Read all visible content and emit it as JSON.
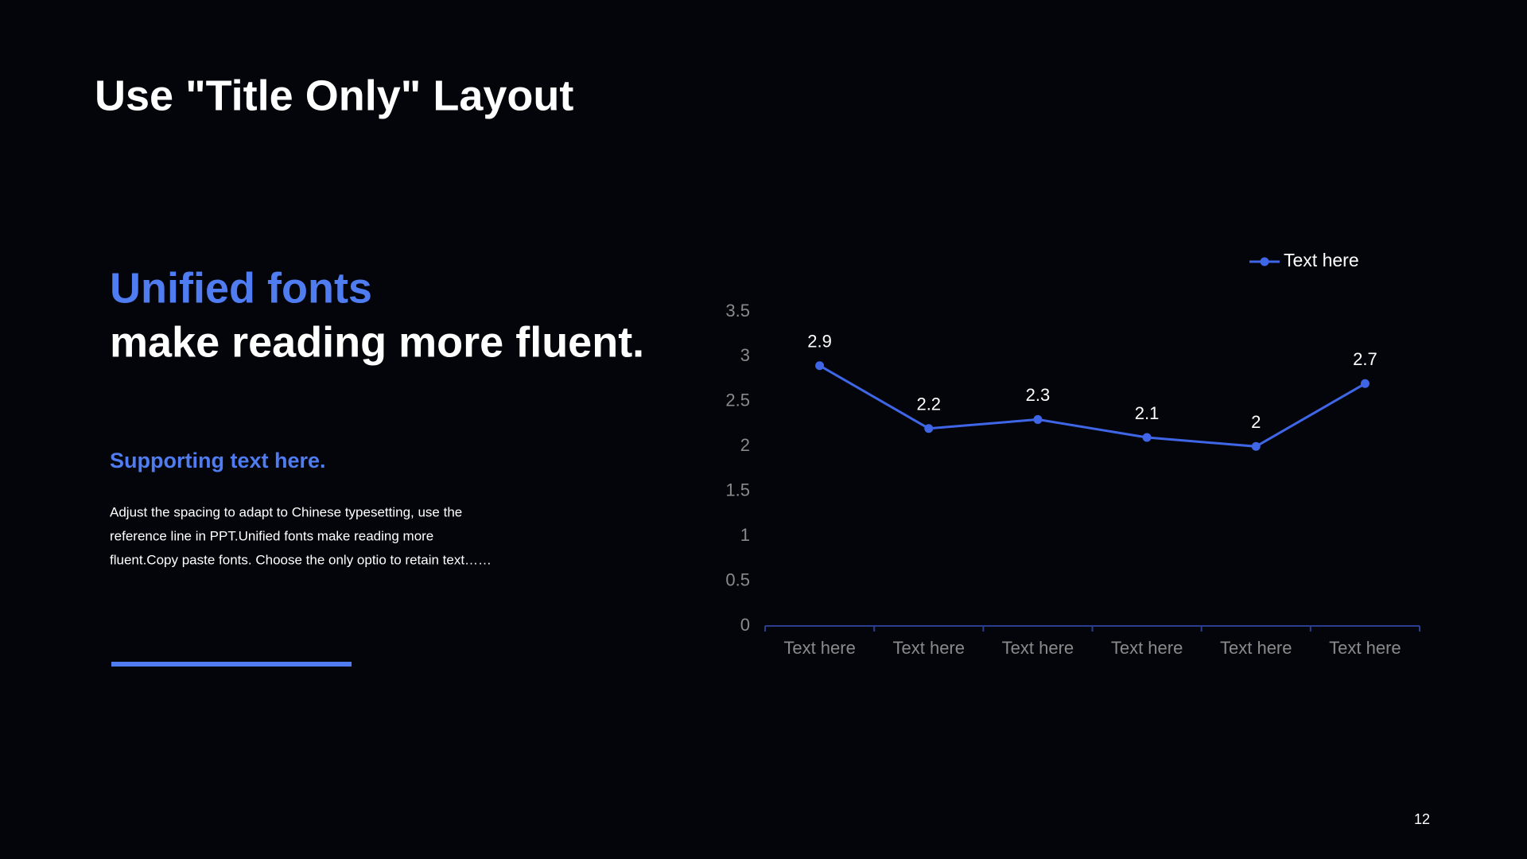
{
  "slide": {
    "title": "Use \"Title Only\" Layout",
    "headline_accent": "Unified fonts",
    "headline": "make reading more fluent.",
    "subheading": "Supporting text here.",
    "paragraph_lines": [
      "Adjust the spacing to adapt to Chinese typesetting, use the",
      "reference line in PPT.Unified fonts make reading more",
      "fluent.Copy paste fonts. Choose the only optio to retain text……"
    ],
    "page_number": "12"
  },
  "chart_data": {
    "type": "line",
    "categories": [
      "Text here",
      "Text here",
      "Text here",
      "Text here",
      "Text here",
      "Text here"
    ],
    "series": [
      {
        "name": "Text here",
        "color": "#3f66e6",
        "values": [
          2.9,
          2.2,
          2.3,
          2.1,
          2,
          2.7
        ]
      }
    ],
    "ylim": [
      0,
      3.5
    ],
    "yticks": [
      0,
      0.5,
      1,
      1.5,
      2,
      2.5,
      3,
      3.5
    ],
    "grid": false,
    "legend": "top-right"
  }
}
